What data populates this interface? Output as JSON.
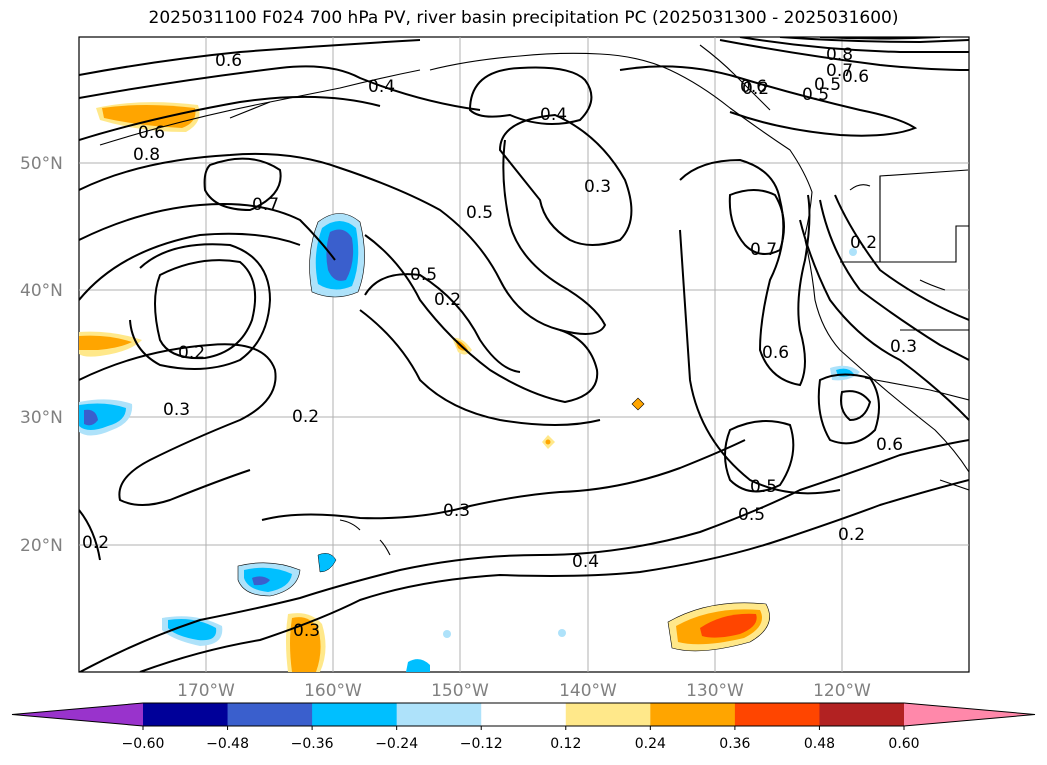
{
  "title": "2025031100 F024 700 hPa PV, river basin precipitation PC (2025031300 - 2025031600)",
  "map": {
    "lat_labels": [
      "50°N",
      "40°N",
      "30°N",
      "20°N"
    ],
    "lon_labels": [
      "170°W",
      "160°W",
      "150°W",
      "140°W",
      "130°W",
      "120°W"
    ],
    "contour_labels": [
      "0.6",
      "0.4",
      "0.8",
      "0.7",
      "0.6",
      "0.5",
      "0.2",
      "0.4",
      "0.3",
      "0.5",
      "0.3",
      "0.2",
      "0.7",
      "0.6",
      "0.2",
      "0.6",
      "0.2",
      "0.3",
      "0.2",
      "0.3",
      "0.4",
      "0.5",
      "0.5",
      "0.2",
      "0.6",
      "0.3",
      "0.8",
      "0.7",
      "0.6",
      "0.5",
      "0.5",
      "0.2"
    ]
  },
  "colorbar": {
    "ticks": [
      "−0.60",
      "−0.48",
      "−0.36",
      "−0.24",
      "−0.12",
      "0.12",
      "0.24",
      "0.36",
      "0.48",
      "0.60"
    ],
    "colors": [
      "#9933cc",
      "#000099",
      "#3a5fcd",
      "#00bfff",
      "#aee2fa",
      "#ffffff",
      "#ffe88a",
      "#ffa500",
      "#ff4500",
      "#b22222",
      "#ff88aa"
    ]
  }
}
